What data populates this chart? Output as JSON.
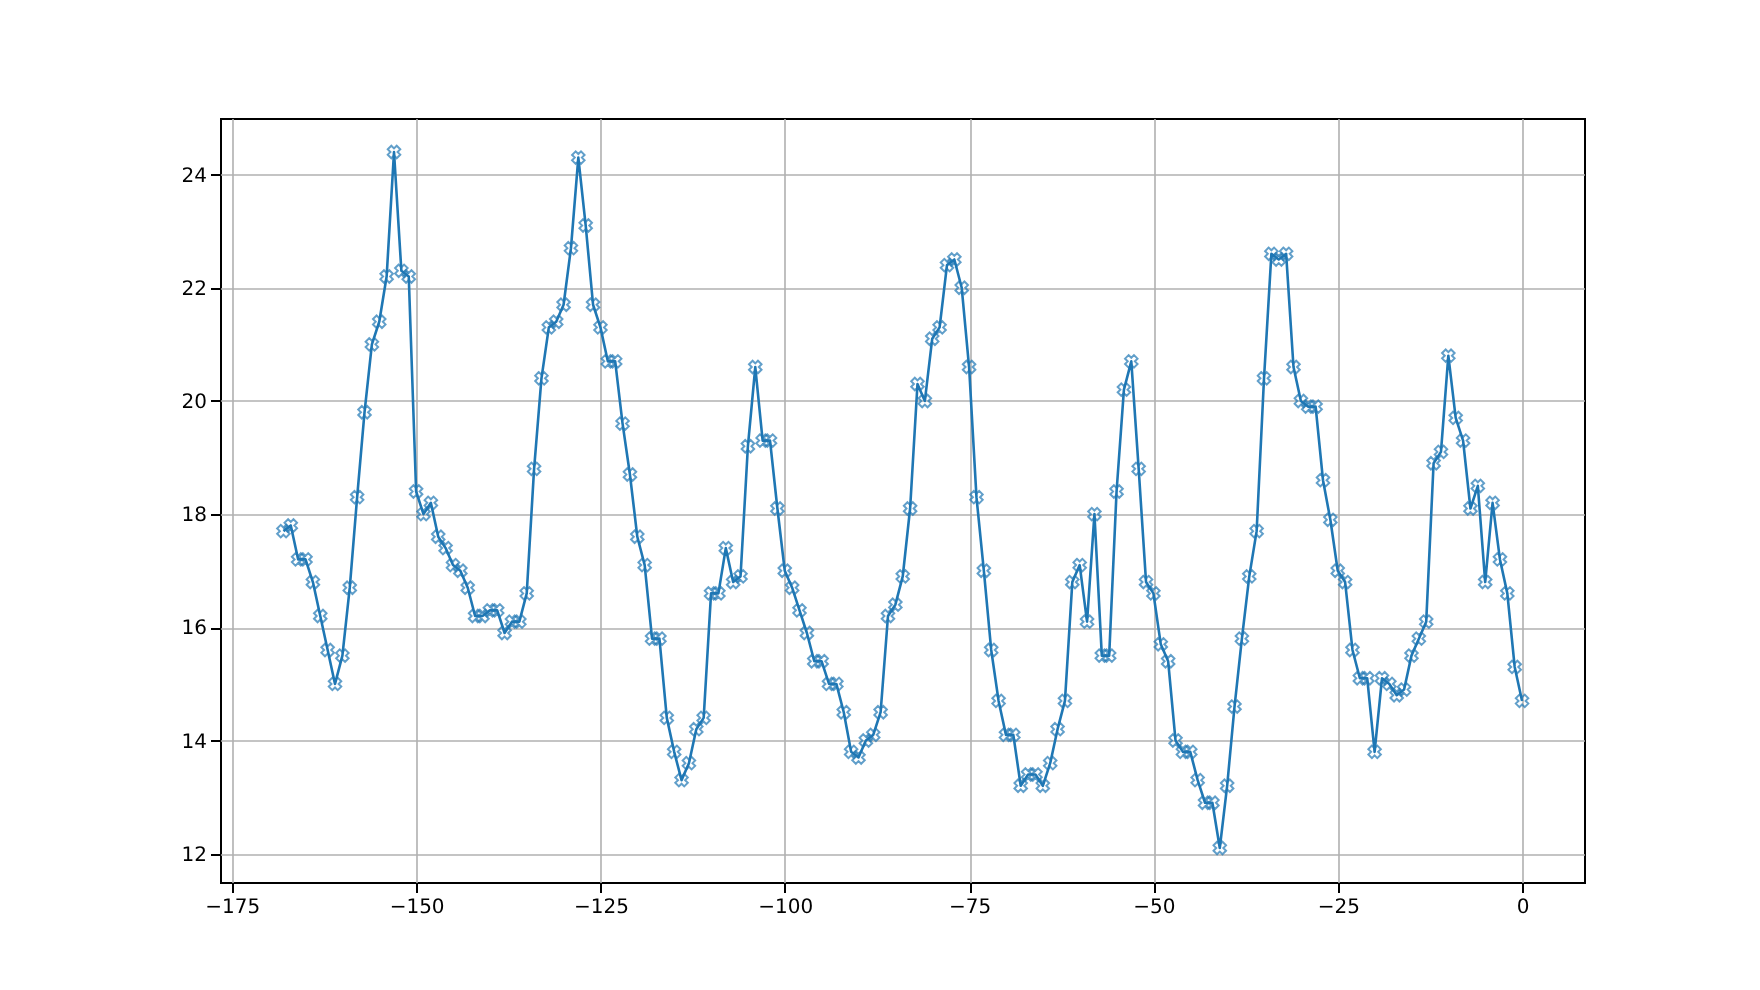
{
  "chart_data": {
    "type": "line",
    "x": [
      -168,
      -167,
      -166,
      -165,
      -164,
      -163,
      -162,
      -161,
      -160,
      -159,
      -158,
      -157,
      -156,
      -155,
      -154,
      -153,
      -152,
      -151,
      -150,
      -149,
      -148,
      -147,
      -146,
      -145,
      -144,
      -143,
      -142,
      -141,
      -140,
      -139,
      -138,
      -137,
      -136,
      -135,
      -134,
      -133,
      -132,
      -131,
      -130,
      -129,
      -128,
      -127,
      -126,
      -125,
      -124,
      -123,
      -122,
      -121,
      -120,
      -119,
      -118,
      -117,
      -116,
      -115,
      -114,
      -113,
      -112,
      -111,
      -110,
      -109,
      -108,
      -107,
      -106,
      -105,
      -104,
      -103,
      -102,
      -101,
      -100,
      -99,
      -98,
      -97,
      -96,
      -95,
      -94,
      -93,
      -92,
      -91,
      -90,
      -89,
      -88,
      -87,
      -86,
      -85,
      -84,
      -83,
      -82,
      -81,
      -80,
      -79,
      -78,
      -77,
      -76,
      -75,
      -74,
      -73,
      -72,
      -71,
      -70,
      -69,
      -68,
      -67,
      -66,
      -65,
      -64,
      -63,
      -62,
      -61,
      -60,
      -59,
      -58,
      -57,
      -56,
      -55,
      -54,
      -53,
      -52,
      -51,
      -50,
      -49,
      -48,
      -47,
      -46,
      -45,
      -44,
      -43,
      -42,
      -41,
      -40,
      -39,
      -38,
      -37,
      -36,
      -35,
      -34,
      -33,
      -32,
      -31,
      -30,
      -29,
      -28,
      -27,
      -26,
      -25,
      -24,
      -23,
      -22,
      -21,
      -20,
      -19,
      -18,
      -17,
      -16,
      -15,
      -14,
      -13,
      -12,
      -11,
      -10,
      -9,
      -8,
      -7,
      -6,
      -5,
      -4,
      -3,
      -2,
      -1,
      0
    ],
    "series": [
      {
        "color": "#1f77b4",
        "values": [
          17.7,
          17.8,
          17.2,
          17.2,
          16.8,
          16.2,
          15.6,
          15.0,
          15.5,
          16.7,
          18.3,
          19.8,
          21.0,
          21.4,
          22.2,
          24.4,
          22.3,
          22.2,
          18.4,
          18.0,
          18.2,
          17.6,
          17.4,
          17.1,
          17.0,
          16.7,
          16.2,
          16.2,
          16.3,
          16.3,
          15.9,
          16.1,
          16.1,
          16.6,
          18.8,
          20.4,
          21.3,
          21.4,
          21.7,
          22.7,
          24.3,
          23.1,
          21.7,
          21.3,
          20.7,
          20.7,
          19.6,
          18.7,
          17.6,
          17.1,
          15.8,
          15.8,
          14.4,
          13.8,
          13.3,
          13.6,
          14.2,
          14.4,
          16.6,
          16.6,
          17.4,
          16.8,
          16.9,
          19.2,
          20.6,
          19.3,
          19.3,
          18.1,
          17.0,
          16.7,
          16.3,
          15.9,
          15.4,
          15.4,
          15.0,
          15.0,
          14.5,
          13.8,
          13.7,
          14.0,
          14.1,
          14.5,
          16.2,
          16.4,
          16.9,
          18.1,
          20.3,
          20.0,
          21.1,
          21.3,
          22.4,
          22.5,
          22.0,
          20.6,
          18.3,
          17.0,
          15.6,
          14.7,
          14.1,
          14.1,
          13.2,
          13.4,
          13.4,
          13.2,
          13.6,
          14.2,
          14.7,
          16.8,
          17.1,
          16.1,
          18.0,
          15.5,
          15.5,
          18.4,
          20.2,
          20.7,
          18.8,
          16.8,
          16.6,
          15.7,
          15.4,
          14.0,
          13.8,
          13.8,
          13.3,
          12.9,
          12.9,
          12.1,
          13.2,
          14.6,
          15.8,
          16.9,
          17.7,
          20.4,
          22.6,
          22.5,
          22.6,
          20.6,
          20.0,
          19.9,
          19.9,
          18.6,
          17.9,
          17.0,
          16.8,
          15.6,
          15.1,
          15.1,
          13.8,
          15.1,
          15.0,
          14.8,
          14.9,
          15.5,
          15.8,
          16.1,
          18.9,
          19.1,
          20.8,
          19.7,
          19.3,
          18.1,
          18.5,
          16.8,
          18.2,
          17.2,
          16.6,
          15.3,
          14.7
        ]
      }
    ],
    "xlim": [
      -176.6,
      8.4
    ],
    "ylim": [
      11.5,
      25.0
    ],
    "xticks": [
      -175,
      -150,
      -125,
      -100,
      -75,
      -50,
      -25,
      0
    ],
    "yticks": [
      12,
      14,
      16,
      18,
      20,
      22,
      24
    ],
    "grid": true,
    "marker": "cross"
  }
}
